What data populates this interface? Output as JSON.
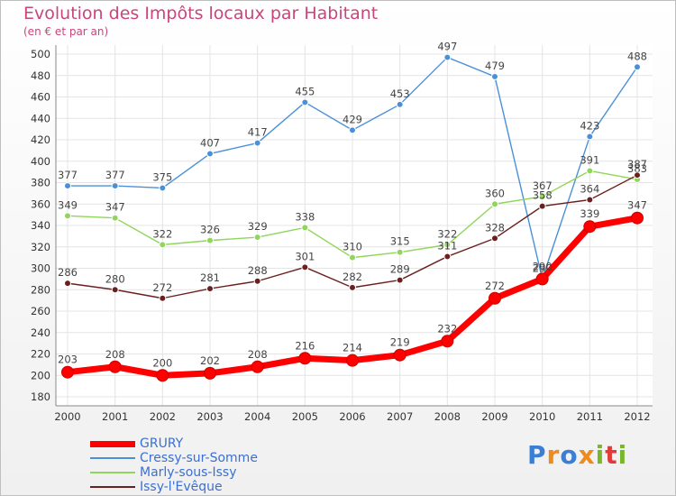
{
  "chart_data": {
    "type": "line",
    "title": "Evolution des Impôts locaux par Habitant",
    "subtitle": "(en € et par an)",
    "x": [
      "2000",
      "2001",
      "2002",
      "2003",
      "2004",
      "2005",
      "2006",
      "2007",
      "2008",
      "2009",
      "2010",
      "2011",
      "2012"
    ],
    "ylim": [
      180,
      500
    ],
    "yticks": [
      180,
      200,
      220,
      240,
      260,
      280,
      300,
      320,
      340,
      360,
      380,
      400,
      420,
      440,
      460,
      480,
      500
    ],
    "grid": true,
    "legend_position": "bottom-left",
    "series": [
      {
        "name": "GRURY",
        "color": "#ff0000",
        "values": [
          203,
          208,
          200,
          202,
          208,
          216,
          214,
          219,
          232,
          272,
          290,
          339,
          347
        ]
      },
      {
        "name": "Cressy-sur-Somme",
        "color": "#4a90d9",
        "values": [
          377,
          377,
          375,
          407,
          417,
          455,
          429,
          453,
          497,
          479,
          290,
          423,
          488
        ]
      },
      {
        "name": "Marly-sous-Issy",
        "color": "#8fd65a",
        "values": [
          349,
          347,
          322,
          326,
          329,
          338,
          310,
          315,
          322,
          360,
          367,
          391,
          383
        ]
      },
      {
        "name": "Issy-l'Evêque",
        "color": "#6b2020",
        "values": [
          286,
          280,
          272,
          281,
          288,
          301,
          282,
          289,
          311,
          328,
          358,
          364,
          387
        ]
      }
    ]
  },
  "logo": {
    "text": "Proxiti",
    "letters": [
      "P",
      "r",
      "o",
      "x",
      "i",
      "t",
      "i"
    ],
    "colors": [
      "#3a7fd5",
      "#f08a1c",
      "#3a7fd5",
      "#f08a1c",
      "#77b82a",
      "#e33a3a",
      "#77b82a"
    ]
  }
}
